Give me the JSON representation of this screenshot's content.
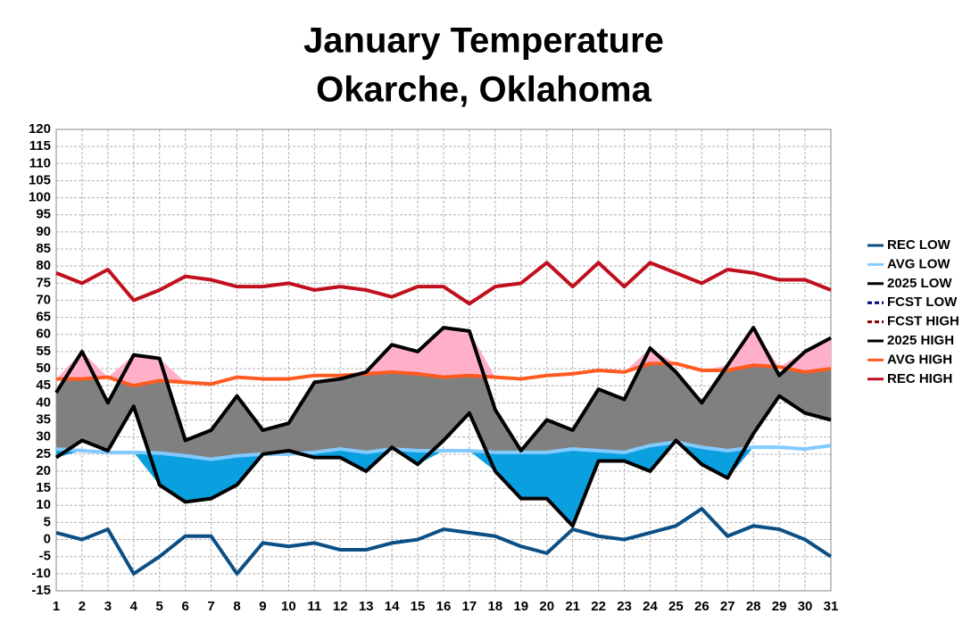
{
  "chart_data": {
    "type": "line",
    "title": "January Temperature",
    "subtitle": "Okarche, Oklahoma",
    "x": [
      1,
      2,
      3,
      4,
      5,
      6,
      7,
      8,
      9,
      10,
      11,
      12,
      13,
      14,
      15,
      16,
      17,
      18,
      19,
      20,
      21,
      22,
      23,
      24,
      25,
      26,
      27,
      28,
      29,
      30,
      31
    ],
    "xticks": [
      1,
      2,
      3,
      4,
      5,
      6,
      7,
      8,
      9,
      10,
      11,
      12,
      13,
      14,
      15,
      16,
      17,
      18,
      19,
      20,
      21,
      22,
      23,
      24,
      25,
      26,
      27,
      28,
      29,
      30,
      31
    ],
    "xlim": [
      1,
      31
    ],
    "ylim": [
      -15,
      120
    ],
    "yticks": [
      -15,
      -10,
      -5,
      0,
      5,
      10,
      15,
      20,
      25,
      30,
      35,
      40,
      45,
      50,
      55,
      60,
      65,
      70,
      75,
      80,
      85,
      90,
      95,
      100,
      105,
      110,
      115,
      120
    ],
    "grid": true,
    "legend": "right",
    "series": [
      {
        "name": "REC LOW",
        "color": "#0b4f85",
        "values": [
          2,
          0,
          3,
          -10,
          -5,
          1,
          1,
          -10,
          -1,
          -2,
          -1,
          -3,
          -3,
          -1,
          0,
          3,
          2,
          1,
          -2,
          -4,
          3,
          1,
          0,
          2,
          4,
          9,
          1,
          4,
          3,
          0,
          -5
        ]
      },
      {
        "name": "AVG LOW",
        "color": "#83caff",
        "values": [
          26.5,
          26,
          25.5,
          25.5,
          25.3,
          24.5,
          23.5,
          24.5,
          25,
          25,
          25.5,
          26.5,
          25.5,
          26.5,
          26,
          26,
          26,
          25.5,
          25.5,
          25.5,
          26.5,
          26,
          25.5,
          27.5,
          28.5,
          27,
          26,
          27,
          27,
          26.5,
          27.5
        ]
      },
      {
        "name": "2025 LOW",
        "color": "#000000",
        "values": [
          24,
          29,
          26,
          39,
          16,
          11,
          12,
          16,
          25,
          26,
          24,
          24,
          20,
          27,
          22,
          29,
          37,
          20,
          12,
          12,
          4,
          23,
          23,
          20,
          29,
          22,
          18,
          31,
          42,
          37,
          35
        ]
      },
      {
        "name": "FCST LOW",
        "color": "#000080",
        "dashed": true,
        "values": [
          null,
          null,
          null,
          null,
          null,
          null,
          null,
          null,
          null,
          null,
          null,
          null,
          null,
          null,
          null,
          null,
          null,
          null,
          null,
          null,
          null,
          null,
          null,
          null,
          null,
          null,
          null,
          null,
          null,
          null,
          null
        ]
      },
      {
        "name": "FCST HIGH",
        "color": "#800000",
        "dashed": true,
        "values": [
          null,
          null,
          null,
          null,
          null,
          null,
          null,
          null,
          null,
          null,
          null,
          null,
          null,
          null,
          null,
          null,
          null,
          null,
          null,
          null,
          null,
          null,
          null,
          null,
          null,
          null,
          null,
          null,
          null,
          null,
          null
        ]
      },
      {
        "name": "2025 HIGH",
        "color": "#000000",
        "values": [
          43,
          55,
          40,
          54,
          53,
          29,
          32,
          42,
          32,
          34,
          46,
          47,
          49,
          57,
          55,
          62,
          61,
          38,
          26,
          35,
          32,
          44,
          41,
          56,
          49,
          40,
          51,
          62,
          48,
          55,
          59
        ]
      },
      {
        "name": "AVG HIGH",
        "color": "#ff5a1f",
        "values": [
          47,
          47,
          47.5,
          45,
          46.5,
          46,
          45.5,
          47.5,
          47,
          47,
          48,
          48,
          48.5,
          49,
          48.5,
          47.5,
          48,
          47.5,
          47,
          48,
          48.5,
          49.5,
          49,
          51.5,
          51.5,
          49.5,
          49.5,
          51,
          50.5,
          49,
          50
        ]
      },
      {
        "name": "REC HIGH",
        "color": "#c0101e",
        "values": [
          78,
          75,
          79,
          70,
          73,
          77,
          76,
          74,
          74,
          75,
          73,
          74,
          73,
          71,
          74,
          74,
          69,
          74,
          75,
          81,
          74,
          81,
          74,
          81,
          78,
          75,
          79,
          78,
          76,
          76,
          73
        ]
      }
    ]
  }
}
